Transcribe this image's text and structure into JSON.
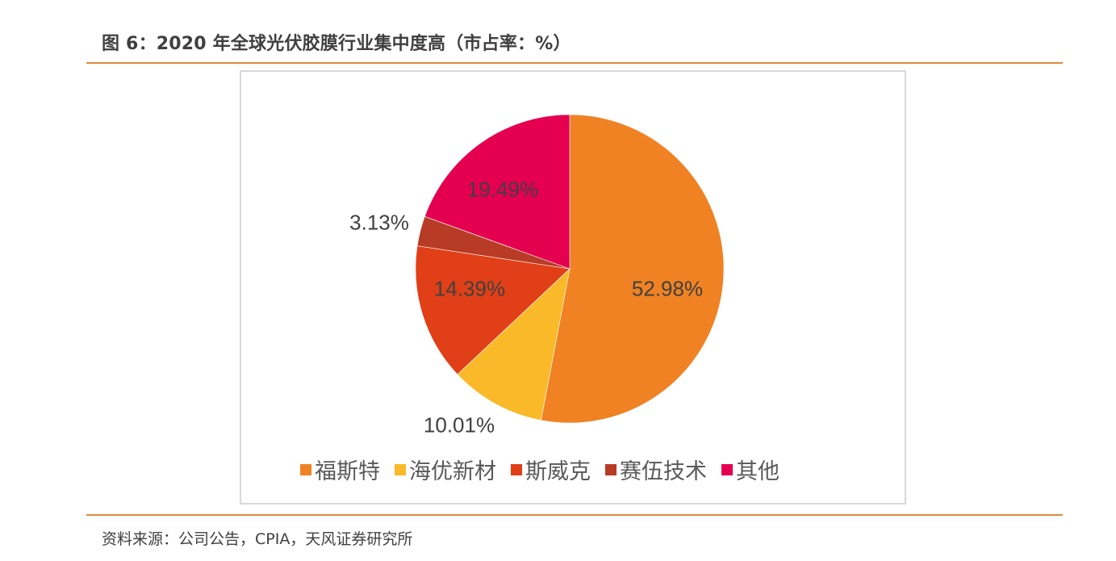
{
  "figure": {
    "title": "图 6：2020 年全球光伏胶膜行业集中度高（市占率：%）",
    "source": "资料来源：公司公告，CPIA，天风证券研究所"
  },
  "colors": {
    "rule": "#e08a3c",
    "border": "#d9d9d9"
  },
  "chart_data": {
    "type": "pie",
    "title": "2020 年全球光伏胶膜行业集中度高（市占率：%）",
    "unit": "%",
    "start_angle_deg": 0,
    "direction": "clockwise",
    "legend_position": "bottom",
    "categories": [
      "福斯特",
      "海优新材",
      "斯威克",
      "赛伍技术",
      "其他"
    ],
    "values": [
      52.98,
      10.01,
      14.39,
      3.13,
      19.49
    ],
    "labels": [
      "52.98%",
      "10.01%",
      "14.39%",
      "3.13%",
      "19.49%"
    ],
    "colors": [
      "#f08223",
      "#f9b928",
      "#e03f17",
      "#b83b26",
      "#e4004f"
    ]
  },
  "legend": {
    "items": [
      {
        "label": "福斯特",
        "color": "#f08223"
      },
      {
        "label": "海优新材",
        "color": "#f9b928"
      },
      {
        "label": "斯威克",
        "color": "#e03f17"
      },
      {
        "label": "赛伍技术",
        "color": "#b83b26"
      },
      {
        "label": "其他",
        "color": "#e4004f"
      }
    ]
  },
  "data_labels": {
    "fusite": "52.98%",
    "haiyou": "10.01%",
    "siweike": "14.39%",
    "saiwu": "3.13%",
    "other": "19.49%"
  }
}
